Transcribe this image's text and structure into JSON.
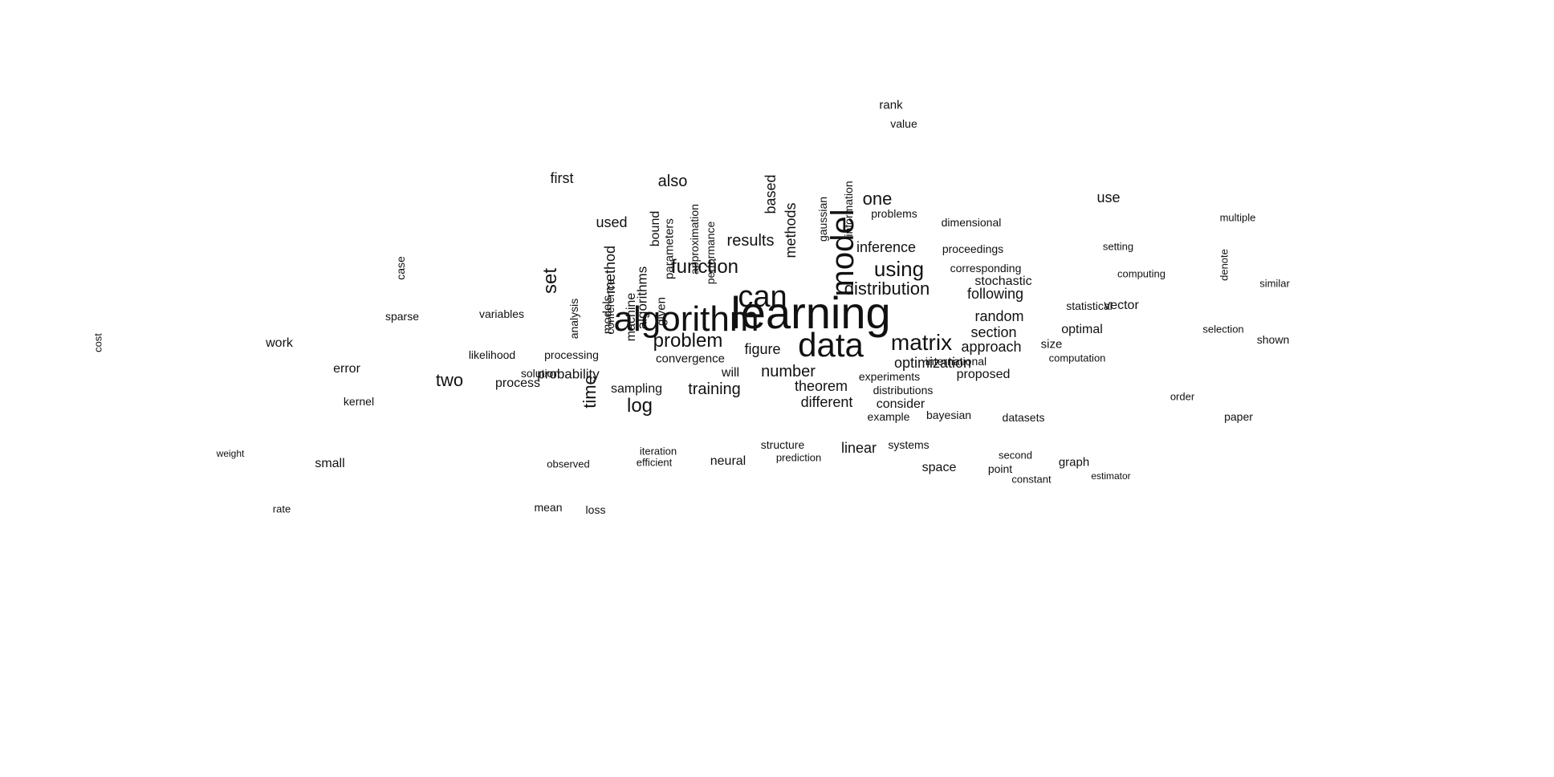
{
  "words": [
    "learning",
    "algorithm",
    "data",
    "can",
    "model",
    "matrix",
    "problem",
    "function",
    "using",
    "distribution",
    "log",
    "two",
    "set",
    "time",
    "one",
    "results",
    "number",
    "probability",
    "training",
    "also",
    "figure",
    "approach",
    "section",
    "random",
    "optimization",
    "theorem",
    "vector",
    "following",
    "stochastic",
    "inference",
    "proposed",
    "different",
    "used",
    "method",
    "based",
    "methods",
    "first",
    "paper",
    "space",
    "linear",
    "error",
    "work",
    "case",
    "small",
    "sampling",
    "process",
    "will",
    "neural",
    "graph",
    "consider",
    "use",
    "size",
    "optimal",
    "problems",
    "corresponding",
    "international",
    "shown",
    "value",
    "algorithms",
    "convergence",
    "analysis",
    "machine",
    "given",
    "bound",
    "models",
    "parameters",
    "approximation",
    "performance",
    "information",
    "gaussian",
    "proceedings",
    "bayesian",
    "example",
    "datasets",
    "distributions",
    "experiments",
    "systems",
    "computation",
    "statistical",
    "conference",
    "rank",
    "cost",
    "kernel",
    "sparse",
    "solution",
    "variables",
    "dimensional",
    "selection",
    "setting",
    "computing",
    "similar",
    "denote",
    "order",
    "multiple",
    "point",
    "second",
    "constant",
    "mean",
    "loss",
    "rate",
    "weight",
    "algorithm",
    "likelihood",
    "processing",
    "observed",
    "iteration",
    "efficient",
    "structure",
    "prediction",
    "estimator"
  ]
}
